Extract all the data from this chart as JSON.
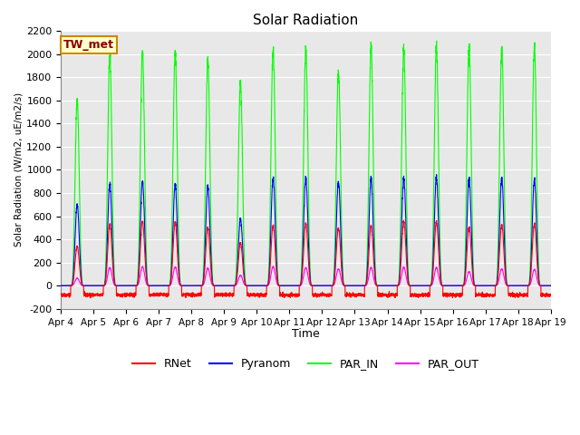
{
  "title": "Solar Radiation",
  "ylabel": "Solar Radiation (W/m2, uE/m2/s)",
  "xlabel": "Time",
  "ylim": [
    -200,
    2200
  ],
  "yticks": [
    -200,
    0,
    200,
    400,
    600,
    800,
    1000,
    1200,
    1400,
    1600,
    1800,
    2000,
    2200
  ],
  "xtick_labels": [
    "Apr 4",
    "Apr 5",
    "Apr 6",
    "Apr 7",
    "Apr 8",
    "Apr 9",
    "Apr 10",
    "Apr 11",
    "Apr 12",
    "Apr 13",
    "Apr 14",
    "Apr 15",
    "Apr 16",
    "Apr 17",
    "Apr 18",
    "Apr 19"
  ],
  "colors": {
    "RNet": "#ff0000",
    "Pyranom": "#0000ff",
    "PAR_IN": "#00ff00",
    "PAR_OUT": "#ff00ff"
  },
  "station_label": "TW_met",
  "station_box_facecolor": "#ffffcc",
  "station_box_edgecolor": "#cc8800",
  "plot_bg_color": "#e8e8e8",
  "fig_bg_color": "#ffffff",
  "grid_color": "#ffffff",
  "n_days": 15,
  "pts_per_day": 288,
  "par_in_peaks": [
    1600,
    2000,
    2020,
    2000,
    1950,
    1760,
    2040,
    2040,
    1860,
    2050,
    2050,
    2050,
    2050,
    2050,
    2070
  ],
  "pyranom_peaks": [
    700,
    880,
    900,
    870,
    860,
    580,
    930,
    930,
    900,
    920,
    930,
    930,
    920,
    930,
    920
  ],
  "rnet_peaks": [
    340,
    530,
    555,
    545,
    500,
    370,
    520,
    535,
    500,
    510,
    555,
    545,
    500,
    525,
    535
  ],
  "par_out_peaks": [
    65,
    155,
    165,
    160,
    150,
    90,
    165,
    155,
    145,
    155,
    160,
    155,
    120,
    145,
    140
  ],
  "rnet_night": -80,
  "day_start": 0.3,
  "day_end": 0.7,
  "peak_sharpness": 4.0
}
